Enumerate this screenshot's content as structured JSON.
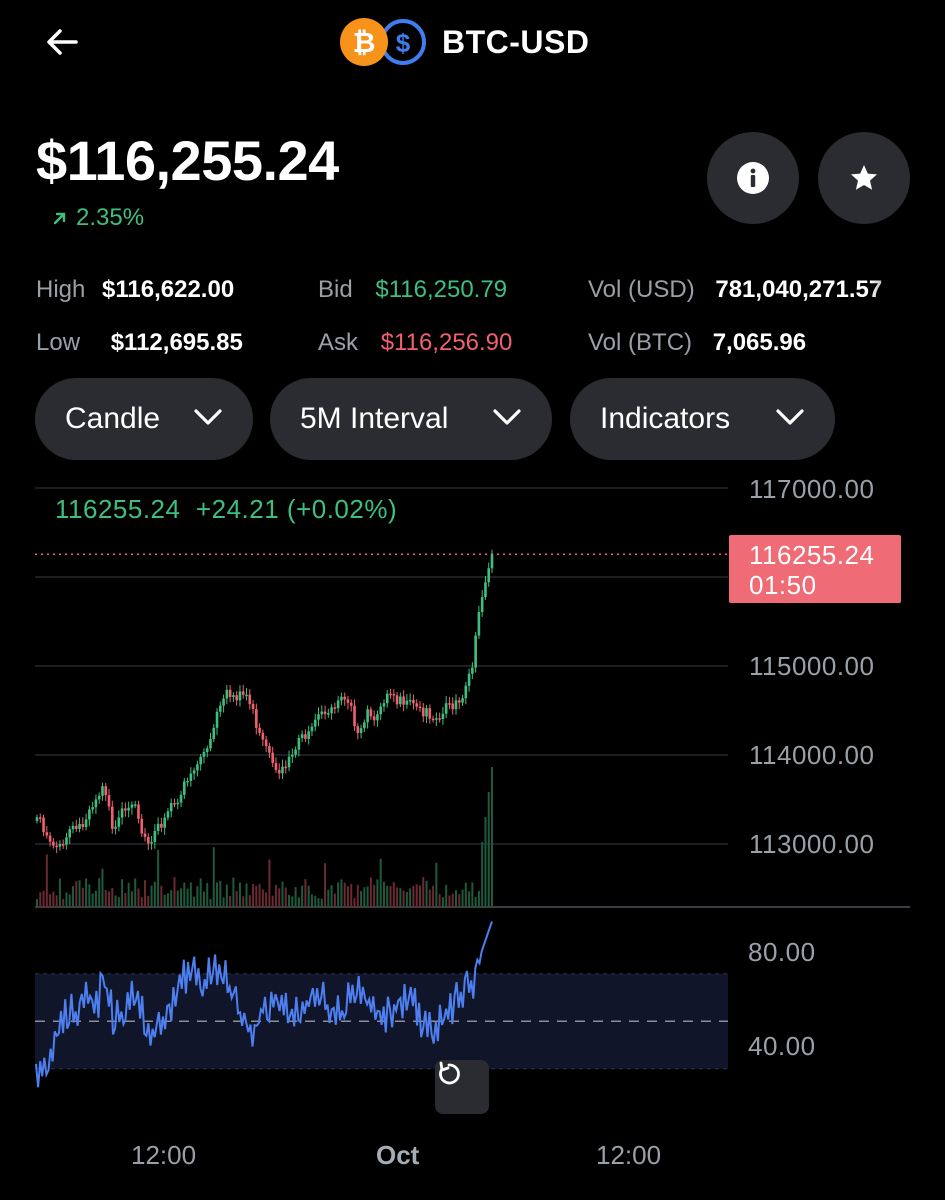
{
  "header": {
    "pair": "BTC-USD",
    "back_icon": "back-arrow-icon",
    "base_icon": "bitcoin-icon",
    "quote_icon": "usd-icon"
  },
  "price": {
    "value": "$116,255.24",
    "change": "2.35%",
    "change_color": "#3fbf7f"
  },
  "stats": {
    "high_label": "High",
    "high": "$116,622.00",
    "low_label": "Low",
    "low": "$112,695.85",
    "bid_label": "Bid",
    "bid": "$116,250.79",
    "ask_label": "Ask",
    "ask": "$116,256.90",
    "vol_usd_label": "Vol (USD)",
    "vol_usd": "781,040,271.57",
    "vol_btc_label": "Vol (BTC)",
    "vol_btc": "7,065.96"
  },
  "controls": {
    "chart_type": "Candle",
    "interval": "5M Interval",
    "indicators": "Indicators"
  },
  "chart": {
    "legend": "116255.24  +24.21 (+0.02%)",
    "last_price": "116255.24",
    "countdown": "01:50",
    "y_ticks": [
      "117000.00",
      "115000.00",
      "114000.00",
      "113000.00"
    ],
    "rsi_ticks": [
      "80.00",
      "40.00"
    ],
    "x_ticks": [
      "12:00",
      "Oct",
      "12:00"
    ],
    "up_color": "#3fbf7f",
    "down_color": "#f0616d",
    "rsi_color": "#4d7ff0"
  },
  "chart_data": {
    "type": "candlestick",
    "price_range": [
      112500,
      117200
    ],
    "candles_close": [
      113300,
      113050,
      112900,
      113100,
      113250,
      113200,
      113400,
      113600,
      113200,
      113450,
      113500,
      113100,
      112950,
      113200,
      113450,
      113550,
      113700,
      113900,
      114100,
      114500,
      114800,
      114600,
      114700,
      114400,
      114200,
      113950,
      113800,
      114000,
      114200,
      114400,
      114550,
      114450,
      114600,
      114500,
      114300,
      114550,
      114400,
      114650,
      114550,
      114700,
      114600,
      114450,
      114300,
      114500,
      114600,
      114700,
      115100,
      115800,
      116255.24
    ],
    "rsi_range": [
      20,
      95
    ],
    "rsi_values": [
      32,
      28,
      45,
      55,
      52,
      60,
      58,
      65,
      50,
      55,
      62,
      48,
      44,
      52,
      60,
      70,
      75,
      66,
      72,
      68,
      58,
      50,
      45,
      55,
      58,
      60,
      52,
      56,
      62,
      58,
      50,
      55,
      60,
      64,
      52,
      48,
      56,
      58,
      60,
      50,
      46,
      52,
      56,
      60,
      66,
      80,
      92
    ]
  }
}
